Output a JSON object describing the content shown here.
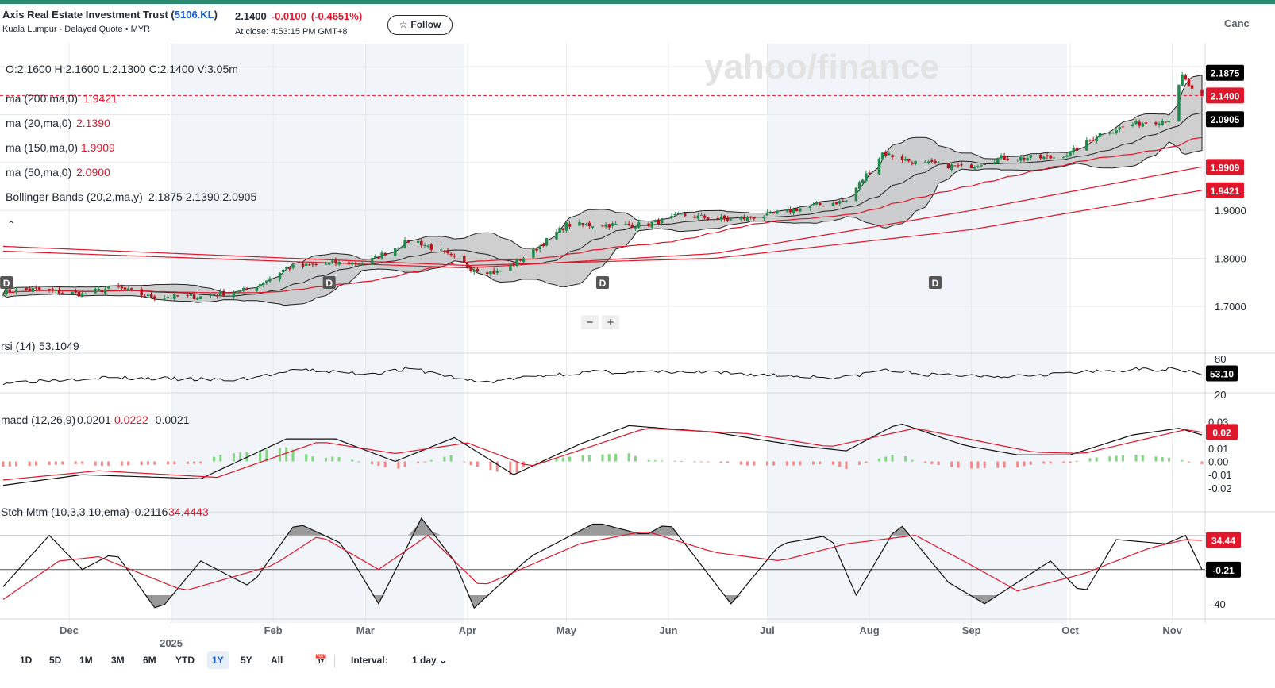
{
  "header": {
    "name": "Axis Real Estate Investment Trust (",
    "symbol": "5106.KL",
    "name_end": ")",
    "exchange": "Kuala Lumpur - Delayed Quote • MYR",
    "price": "2.1400",
    "change": "-0.0100",
    "change_pct": "(-0.4651%)",
    "close_time": "At close: 4:53:15 PM GMT+8",
    "follow_label": "Follow",
    "cancel_label": "Canc"
  },
  "colors": {
    "up": "#1e8a4c",
    "down": "#b5121b",
    "accent": "#1a5fd0",
    "ma": "#e0162b",
    "band_fill": "#bfbfbf"
  },
  "chart_data": {
    "type": "candlestick",
    "watermark": "yahoo/finance",
    "legend": {
      "ohlcv": "O:2.1600   H:2.1600   L:2.1300   C:2.1400   V:3.05m",
      "ma200_label": "ma (200,ma,0)",
      "ma200_value": "1.9421",
      "ma20_label": "ma (20,ma,0)",
      "ma20_value": "2.1390",
      "ma150_label": "ma (150,ma,0)",
      "ma150_value": "1.9909",
      "ma50_label": "ma (50,ma,0)",
      "ma50_value": "2.0900",
      "bb_label": "Bollinger Bands (20,2,ma,y)",
      "bb_values": "2.1875 2.1390 2.0905"
    },
    "price_axis": {
      "ylim": [
        1.66,
        2.245
      ],
      "ticks": [
        "1.7000",
        "1.8000",
        "1.9000"
      ],
      "tick_values": [
        1.7,
        1.8,
        1.9
      ]
    },
    "price_badges": [
      {
        "label": "2.1875",
        "value": 2.1875,
        "style": "black"
      },
      {
        "label": "2.1400",
        "value": 2.14,
        "style": "red"
      },
      {
        "label": "2.0905",
        "value": 2.0905,
        "style": "black"
      },
      {
        "label": "1.9909",
        "value": 1.9909,
        "style": "red"
      },
      {
        "label": "1.9421",
        "value": 1.9421,
        "style": "red"
      }
    ],
    "last_close": 2.14,
    "x_range": [
      "2024-11-11",
      "2025-11-10"
    ],
    "x_ticks": [
      {
        "label": "Dec",
        "date": "2024-12-01"
      },
      {
        "label": "2025",
        "date": "2025-01-01",
        "major": true
      },
      {
        "label": "Feb",
        "date": "2025-02-01"
      },
      {
        "label": "Mar",
        "date": "2025-03-01"
      },
      {
        "label": "Apr",
        "date": "2025-04-01"
      },
      {
        "label": "May",
        "date": "2025-05-01"
      },
      {
        "label": "Jun",
        "date": "2025-06-01"
      },
      {
        "label": "Jul",
        "date": "2025-07-01"
      },
      {
        "label": "Aug",
        "date": "2025-08-01"
      },
      {
        "label": "Sep",
        "date": "2025-09-01"
      },
      {
        "label": "Oct",
        "date": "2025-10-01"
      },
      {
        "label": "Nov",
        "date": "2025-11-01"
      }
    ],
    "shaded_quarters": [
      [
        "2025-01-01",
        "2025-03-31"
      ],
      [
        "2025-07-01",
        "2025-09-30"
      ]
    ],
    "dividend_markers": [
      {
        "label": "D",
        "date": "2024-11-12"
      },
      {
        "label": "D",
        "date": "2025-02-18"
      },
      {
        "label": "D",
        "date": "2025-05-12"
      },
      {
        "label": "D",
        "date": "2025-08-21"
      }
    ],
    "zoom_controls": {
      "minus": "−",
      "plus": "+"
    },
    "price_anchors": [
      [
        "2024-11-11",
        1.73
      ],
      [
        "2024-11-20",
        1.735
      ],
      [
        "2024-12-05",
        1.725
      ],
      [
        "2024-12-15",
        1.74
      ],
      [
        "2024-12-25",
        1.72
      ],
      [
        "2025-01-10",
        1.72
      ],
      [
        "2025-01-25",
        1.735
      ],
      [
        "2025-02-05",
        1.78
      ],
      [
        "2025-02-20",
        1.79
      ],
      [
        "2025-03-01",
        1.79
      ],
      [
        "2025-03-15",
        1.84
      ],
      [
        "2025-03-25",
        1.81
      ],
      [
        "2025-04-02",
        1.78
      ],
      [
        "2025-04-10",
        1.77
      ],
      [
        "2025-04-20",
        1.81
      ],
      [
        "2025-05-01",
        1.87
      ],
      [
        "2025-05-15",
        1.87
      ],
      [
        "2025-05-25",
        1.87
      ],
      [
        "2025-06-05",
        1.89
      ],
      [
        "2025-06-20",
        1.88
      ],
      [
        "2025-07-01",
        1.89
      ],
      [
        "2025-07-15",
        1.91
      ],
      [
        "2025-07-25",
        1.92
      ],
      [
        "2025-08-05",
        2.02
      ],
      [
        "2025-08-15",
        2.0
      ],
      [
        "2025-08-30",
        1.99
      ],
      [
        "2025-09-10",
        2.01
      ],
      [
        "2025-09-25",
        2.01
      ],
      [
        "2025-10-01",
        2.02
      ],
      [
        "2025-10-10",
        2.06
      ],
      [
        "2025-10-20",
        2.08
      ],
      [
        "2025-10-31",
        2.09
      ],
      [
        "2025-11-04",
        2.18
      ],
      [
        "2025-11-07",
        2.15
      ],
      [
        "2025-11-10",
        2.14
      ]
    ],
    "ma200_anchors": [
      [
        "2024-11-11",
        1.825
      ],
      [
        "2025-04-01",
        1.785
      ],
      [
        "2025-06-15",
        1.8
      ],
      [
        "2025-09-01",
        1.86
      ],
      [
        "2025-11-10",
        1.942
      ]
    ],
    "ma150_anchors": [
      [
        "2024-11-11",
        1.815
      ],
      [
        "2025-04-01",
        1.78
      ],
      [
        "2025-06-15",
        1.81
      ],
      [
        "2025-09-01",
        1.9
      ],
      [
        "2025-11-10",
        1.991
      ]
    ],
    "rsi": {
      "label": "rsi (14)",
      "value_label": "53.1049",
      "badge": "53.10",
      "ylim": [
        20,
        80
      ],
      "ticks": [
        "80",
        "20"
      ],
      "anchors": [
        [
          "2024-11-11",
          35
        ],
        [
          "2024-12-10",
          45
        ],
        [
          "2025-01-20",
          40
        ],
        [
          "2025-02-10",
          60
        ],
        [
          "2025-03-01",
          52
        ],
        [
          "2025-03-15",
          62
        ],
        [
          "2025-04-05",
          35
        ],
        [
          "2025-04-25",
          50
        ],
        [
          "2025-05-10",
          56
        ],
        [
          "2025-06-10",
          55
        ],
        [
          "2025-07-10",
          48
        ],
        [
          "2025-07-25",
          45
        ],
        [
          "2025-08-05",
          60
        ],
        [
          "2025-08-20",
          50
        ],
        [
          "2025-09-10",
          48
        ],
        [
          "2025-10-05",
          55
        ],
        [
          "2025-10-20",
          60
        ],
        [
          "2025-11-03",
          62
        ],
        [
          "2025-11-10",
          53
        ]
      ]
    },
    "macd": {
      "label": "macd (12,26,9)",
      "macd_value": "0.0201",
      "signal_value": "0.0222",
      "hist_value": "-0.0021",
      "badge": "0.02",
      "ylim": [
        -0.026,
        0.035
      ],
      "ticks": [
        "0.03",
        "0.02",
        "0.01",
        "0.00",
        "-0.01",
        "-0.02"
      ],
      "tick_values": [
        0.03,
        0.02,
        0.01,
        0.0,
        -0.01,
        -0.02
      ],
      "macd_anchors": [
        [
          "2024-11-11",
          -0.018
        ],
        [
          "2024-12-05",
          -0.01
        ],
        [
          "2025-01-10",
          -0.013
        ],
        [
          "2025-02-05",
          0.017
        ],
        [
          "2025-02-20",
          0.017
        ],
        [
          "2025-03-10",
          0.0
        ],
        [
          "2025-03-28",
          0.018
        ],
        [
          "2025-04-15",
          -0.01
        ],
        [
          "2025-05-05",
          0.013
        ],
        [
          "2025-05-20",
          0.027
        ],
        [
          "2025-06-15",
          0.022
        ],
        [
          "2025-07-10",
          0.012
        ],
        [
          "2025-07-25",
          0.008
        ],
        [
          "2025-08-10",
          0.029
        ],
        [
          "2025-08-30",
          0.012
        ],
        [
          "2025-09-15",
          0.005
        ],
        [
          "2025-10-01",
          0.005
        ],
        [
          "2025-10-20",
          0.02
        ],
        [
          "2025-11-03",
          0.025
        ],
        [
          "2025-11-10",
          0.02
        ]
      ],
      "signal_anchors": [
        [
          "2024-11-11",
          -0.014
        ],
        [
          "2024-12-10",
          -0.007
        ],
        [
          "2025-01-15",
          -0.012
        ],
        [
          "2025-02-15",
          0.015
        ],
        [
          "2025-03-10",
          0.006
        ],
        [
          "2025-04-01",
          0.014
        ],
        [
          "2025-04-20",
          -0.004
        ],
        [
          "2025-05-25",
          0.025
        ],
        [
          "2025-06-25",
          0.021
        ],
        [
          "2025-07-20",
          0.011
        ],
        [
          "2025-08-15",
          0.025
        ],
        [
          "2025-09-20",
          0.007
        ],
        [
          "2025-10-05",
          0.006
        ],
        [
          "2025-11-05",
          0.024
        ],
        [
          "2025-11-10",
          0.022
        ]
      ]
    },
    "stoch_mtm": {
      "label": "Stch Mtm (10,3,3,10,ema)",
      "k_value": "-0.2116",
      "d_value": "34.4443",
      "badge_d": "34.44",
      "badge_k": "-0.21",
      "ylim": [
        -55,
        60
      ],
      "ticks": [
        "-40"
      ],
      "tick_values": [
        -40
      ],
      "upper_band": 40,
      "zero_line": 0,
      "k_anchors": [
        [
          "2024-11-11",
          -20
        ],
        [
          "2024-11-25",
          40
        ],
        [
          "2024-12-05",
          0
        ],
        [
          "2024-12-15",
          20
        ],
        [
          "2024-12-28",
          -50
        ],
        [
          "2025-01-10",
          10
        ],
        [
          "2025-01-25",
          -20
        ],
        [
          "2025-02-08",
          55
        ],
        [
          "2025-02-22",
          30
        ],
        [
          "2025-03-05",
          -40
        ],
        [
          "2025-03-18",
          60
        ],
        [
          "2025-03-28",
          10
        ],
        [
          "2025-04-03",
          -45
        ],
        [
          "2025-04-20",
          15
        ],
        [
          "2025-05-10",
          55
        ],
        [
          "2025-05-25",
          40
        ],
        [
          "2025-06-01",
          55
        ],
        [
          "2025-06-20",
          -40
        ],
        [
          "2025-07-05",
          30
        ],
        [
          "2025-07-20",
          40
        ],
        [
          "2025-07-28",
          -30
        ],
        [
          "2025-08-10",
          55
        ],
        [
          "2025-08-25",
          -15
        ],
        [
          "2025-09-05",
          -40
        ],
        [
          "2025-09-25",
          10
        ],
        [
          "2025-10-05",
          -30
        ],
        [
          "2025-10-15",
          35
        ],
        [
          "2025-10-30",
          30
        ],
        [
          "2025-11-05",
          40
        ],
        [
          "2025-11-10",
          0
        ]
      ],
      "d_anchors": [
        [
          "2024-11-11",
          -35
        ],
        [
          "2024-11-28",
          10
        ],
        [
          "2024-12-10",
          15
        ],
        [
          "2025-01-05",
          -25
        ],
        [
          "2025-02-01",
          5
        ],
        [
          "2025-02-15",
          40
        ],
        [
          "2025-03-05",
          0
        ],
        [
          "2025-03-20",
          40
        ],
        [
          "2025-04-05",
          -20
        ],
        [
          "2025-05-05",
          30
        ],
        [
          "2025-05-25",
          45
        ],
        [
          "2025-06-15",
          20
        ],
        [
          "2025-07-05",
          10
        ],
        [
          "2025-07-25",
          30
        ],
        [
          "2025-08-15",
          40
        ],
        [
          "2025-09-01",
          5
        ],
        [
          "2025-09-15",
          -25
        ],
        [
          "2025-10-05",
          -5
        ],
        [
          "2025-10-25",
          25
        ],
        [
          "2025-11-05",
          35
        ],
        [
          "2025-11-10",
          34
        ]
      ]
    }
  },
  "footer": {
    "ranges": [
      "1D",
      "5D",
      "1M",
      "3M",
      "6M",
      "YTD",
      "1Y",
      "5Y",
      "All"
    ],
    "active_range": "1Y",
    "calendar_icon": "calendar-icon",
    "interval_label": "Interval:",
    "interval_value": "1 day ⌄"
  }
}
